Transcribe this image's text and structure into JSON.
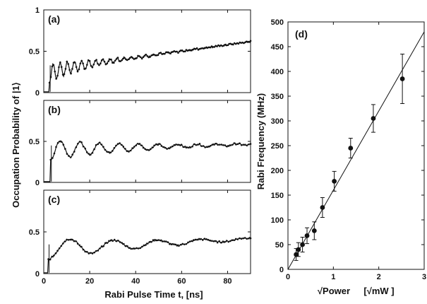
{
  "figure": {
    "ylabel_left": "Occupation Probability of |1⟩",
    "xlabel_left": "Rabi Pulse Time t",
    "xlabel_left_units": ", [ns]",
    "xlabel_right": "√Power",
    "xlabel_right_units": "[√mW ]"
  },
  "chart_data": [
    {
      "type": "line",
      "panel_label": "(a)",
      "xlim": [
        0,
        90
      ],
      "ylim": [
        0,
        1
      ],
      "x_ticks": [
        0,
        20,
        40,
        60,
        80
      ],
      "x_tick_labels": [
        "",
        "",
        "",
        "",
        ""
      ],
      "y_ticks": [
        0,
        0.5,
        1
      ],
      "y_tick_labels": [
        "0",
        "0.5",
        "1"
      ],
      "signal": {
        "onset_ns": 2.5,
        "baseline_at_onset": 0.28,
        "baseline_slope_per_ns": 0.00386,
        "baseline_curvature": -0.05,
        "oscillation_amplitude": 0.11,
        "oscillation_decay_ns": 20,
        "oscillation_period_ns": 3.1,
        "num_points": 300
      },
      "series": [
        {
          "values_note": "",
          "color": "#111111"
        }
      ]
    },
    {
      "type": "line",
      "panel_label": "(b)",
      "xlim": [
        0,
        90
      ],
      "ylim": [
        0,
        1
      ],
      "x_ticks": [
        0,
        20,
        40,
        60,
        80
      ],
      "x_tick_labels": [
        "",
        "",
        "",
        "",
        ""
      ],
      "y_ticks": [
        0,
        0.5
      ],
      "y_tick_labels": [
        "0",
        "0.5"
      ],
      "signal": {
        "onset_ns": 3,
        "baseline_at_onset": 0.4,
        "baseline_slope_per_ns": 0.00075,
        "baseline_curvature": 0,
        "oscillation_amplitude": 0.12,
        "oscillation_decay_ns": 35,
        "oscillation_period_ns": 8.5,
        "num_points": 220
      },
      "series": [
        {
          "values_note": "",
          "color": "#111111"
        }
      ]
    },
    {
      "type": "line",
      "panel_label": "(c)",
      "xlim": [
        0,
        90
      ],
      "ylim": [
        0,
        1
      ],
      "x_ticks": [
        0,
        20,
        40,
        60,
        80
      ],
      "x_tick_labels": [
        "0",
        "20",
        "40",
        "60",
        "80"
      ],
      "y_ticks": [
        0,
        0.5
      ],
      "y_tick_labels": [
        "0",
        "0.5"
      ],
      "signal": {
        "onset_ns": 2,
        "baseline_at_onset": 0.3,
        "baseline_slope_per_ns": 0.0013,
        "baseline_curvature": 0,
        "oscillation_amplitude": 0.13,
        "oscillation_decay_ns": 40,
        "oscillation_period_ns": 19,
        "num_points": 220
      },
      "series": [
        {
          "values_note": "",
          "color": "#111111"
        }
      ]
    },
    {
      "type": "scatter",
      "panel_label": "(d)",
      "xlim": [
        0,
        3
      ],
      "ylim": [
        0,
        500
      ],
      "x_ticks": [
        0,
        1,
        2,
        3
      ],
      "x_tick_labels": [
        "0",
        "1",
        "2",
        "3"
      ],
      "y_ticks": [
        0,
        50,
        100,
        150,
        200,
        250,
        300,
        350,
        400,
        450,
        500
      ],
      "y_tick_labels": [
        "0",
        "50",
        "100",
        "150",
        "200",
        "250",
        "300",
        "350",
        "400",
        "450",
        "500"
      ],
      "xlabel": "√Power",
      "ylabel": "Rabi Frequency (MHz)",
      "points": [
        {
          "x": 0.18,
          "y": 30,
          "err": 12
        },
        {
          "x": 0.23,
          "y": 40,
          "err": 14
        },
        {
          "x": 0.32,
          "y": 50,
          "err": 15
        },
        {
          "x": 0.42,
          "y": 68,
          "err": 16
        },
        {
          "x": 0.58,
          "y": 78,
          "err": 18
        },
        {
          "x": 0.76,
          "y": 125,
          "err": 20
        },
        {
          "x": 1.02,
          "y": 178,
          "err": 20
        },
        {
          "x": 1.38,
          "y": 245,
          "err": 20
        },
        {
          "x": 1.88,
          "y": 305,
          "err": 28
        },
        {
          "x": 2.52,
          "y": 385,
          "err": 50
        }
      ],
      "fit_line": {
        "slope": 160,
        "intercept": 0
      }
    }
  ]
}
